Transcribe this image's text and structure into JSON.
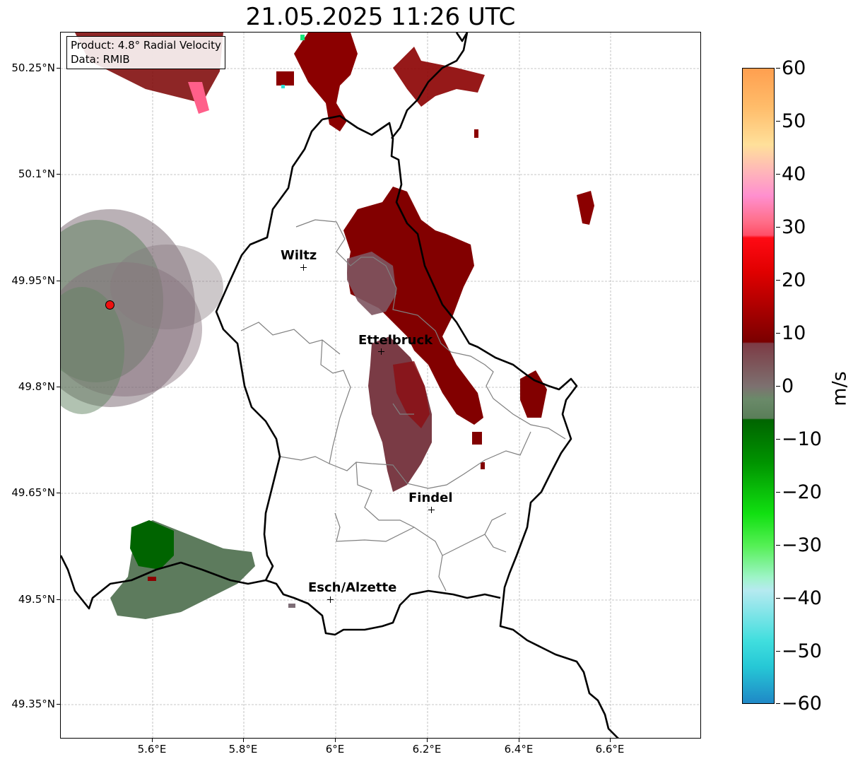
{
  "title": "21.05.2025 11:26 UTC",
  "info_box": {
    "product": "Product: 4.8° Radial Velocity",
    "data_source": "Data: RMIB"
  },
  "axes": {
    "lat_ticks": [
      "50.25°N",
      "50.1°N",
      "49.95°N",
      "49.8°N",
      "49.65°N",
      "49.5°N",
      "49.35°N"
    ],
    "lon_ticks": [
      "5.6°E",
      "5.8°E",
      "6°E",
      "6.2°E",
      "6.4°E",
      "6.6°E"
    ]
  },
  "cities": [
    "Wiltz",
    "Ettelbruck",
    "Findel",
    "Esch/Alzette"
  ],
  "colorbar": {
    "unit": "m/s",
    "ticks": [
      "60",
      "50",
      "40",
      "30",
      "20",
      "10",
      "0",
      "−10",
      "−20",
      "−30",
      "−40",
      "−50",
      "−60"
    ],
    "colors": {
      "outbound_strong": "#ff9f4f",
      "outbound_medium": "#ff0a14",
      "outbound_weak": "#7a0000",
      "near_zero": "#7d7170",
      "inbound_weak": "#5a7e59",
      "inbound_medium": "#006a00",
      "inbound_strong": "#1fe51f",
      "inbound_extreme": "#1f86c6"
    }
  }
}
